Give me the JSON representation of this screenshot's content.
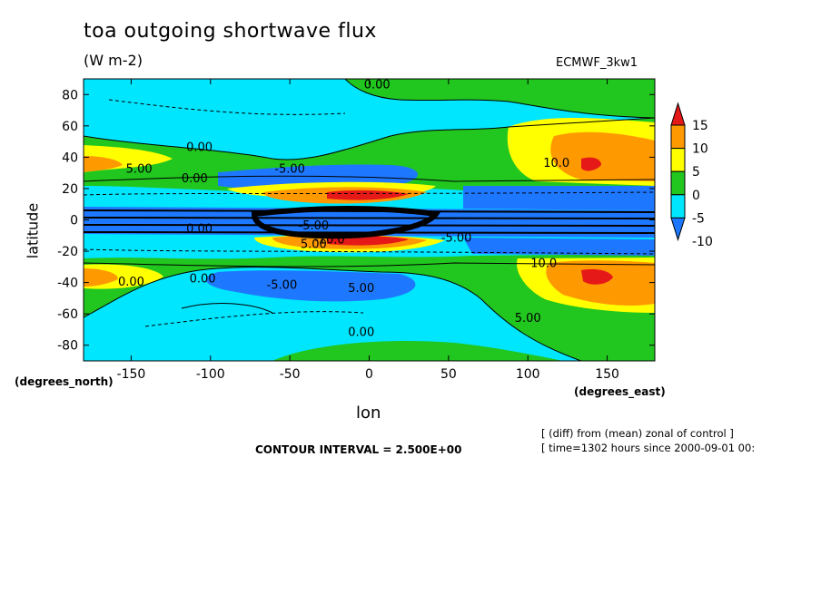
{
  "chart_data": {
    "type": "heatmap",
    "title": "toa outgoing shortwave flux",
    "units": "(W m-2)",
    "model_label": "ECMWF_3kw1",
    "xlabel": "lon",
    "ylabel": "latitude",
    "x_unit_label": "(degrees_east)",
    "y_unit_label": "(degrees_north)",
    "xlim": [
      -180,
      180
    ],
    "ylim": [
      -90,
      90
    ],
    "x_ticks": [
      -150,
      -100,
      -50,
      0,
      50,
      100,
      150
    ],
    "x_tick_labels": [
      "-150",
      "-100",
      "-50",
      "0",
      "50",
      "100",
      "150"
    ],
    "y_ticks": [
      -80,
      -60,
      -40,
      -20,
      0,
      20,
      40,
      60,
      80
    ],
    "y_tick_labels": [
      "-80",
      "-60",
      "-40",
      "-20",
      "0",
      "20",
      "40",
      "60",
      "80"
    ],
    "colorbar": {
      "levels": [
        -10,
        -5,
        0,
        5,
        10,
        15
      ],
      "level_labels": [
        "-10",
        "-5",
        "0",
        "5",
        "10",
        "15"
      ],
      "colors": [
        "#1e78ff",
        "#00e6ff",
        "#21c61f",
        "#ffff00",
        "#ff9900",
        "#e61919"
      ]
    },
    "contour_labels": [
      "0.00",
      "0.00",
      "0.00",
      "0.00",
      "-5.00",
      "5.00",
      "-5.00",
      "10.0",
      "10.0",
      "5.00",
      "-5.00",
      "-10.0",
      "-5.00",
      "0.00",
      "5.00",
      "0.00",
      "0.00",
      "5.00"
    ],
    "contour_interval": "CONTOUR INTERVAL = 2.500E+00",
    "notes": [
      "[ (diff) from (mean) zonal of control ]",
      "[ time=1302 hours since 2000-09-01 00:"
    ]
  }
}
